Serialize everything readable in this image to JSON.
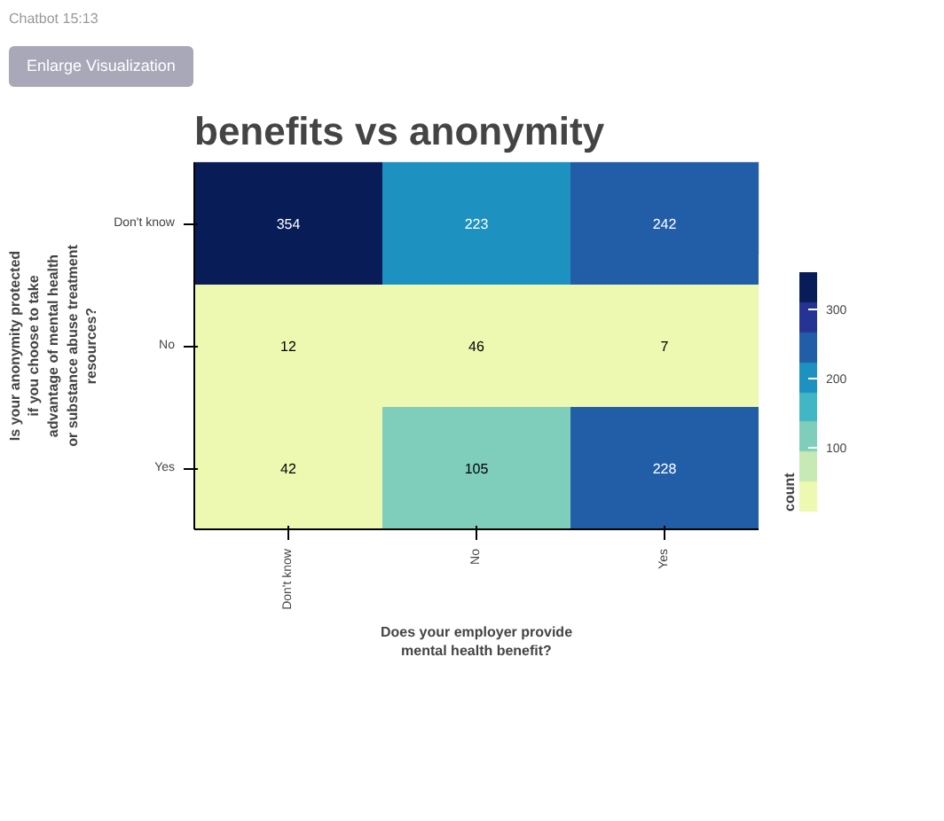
{
  "chart_data": {
    "type": "heatmap",
    "title": "benefits vs anonymity",
    "xlabel": "Does your employer provide mental health benefit?",
    "ylabel": "Is your anonymity protected if you choose to take advantage of mental health or substance abuse treatment resources?",
    "clabel": "count",
    "categories": [
      "Don't know",
      "No",
      "Yes"
    ],
    "y_categories": [
      "Don't know",
      "No",
      "Yes"
    ],
    "cells": [
      [
        354,
        223,
        242
      ],
      [
        12,
        46,
        7
      ],
      [
        42,
        105,
        228
      ]
    ],
    "clim": [
      7,
      354
    ],
    "cticks": [
      100,
      200,
      300
    ],
    "data_labels": true,
    "annotations": [
      "Chatbot 15:13",
      "Enlarge Visualization"
    ]
  }
}
